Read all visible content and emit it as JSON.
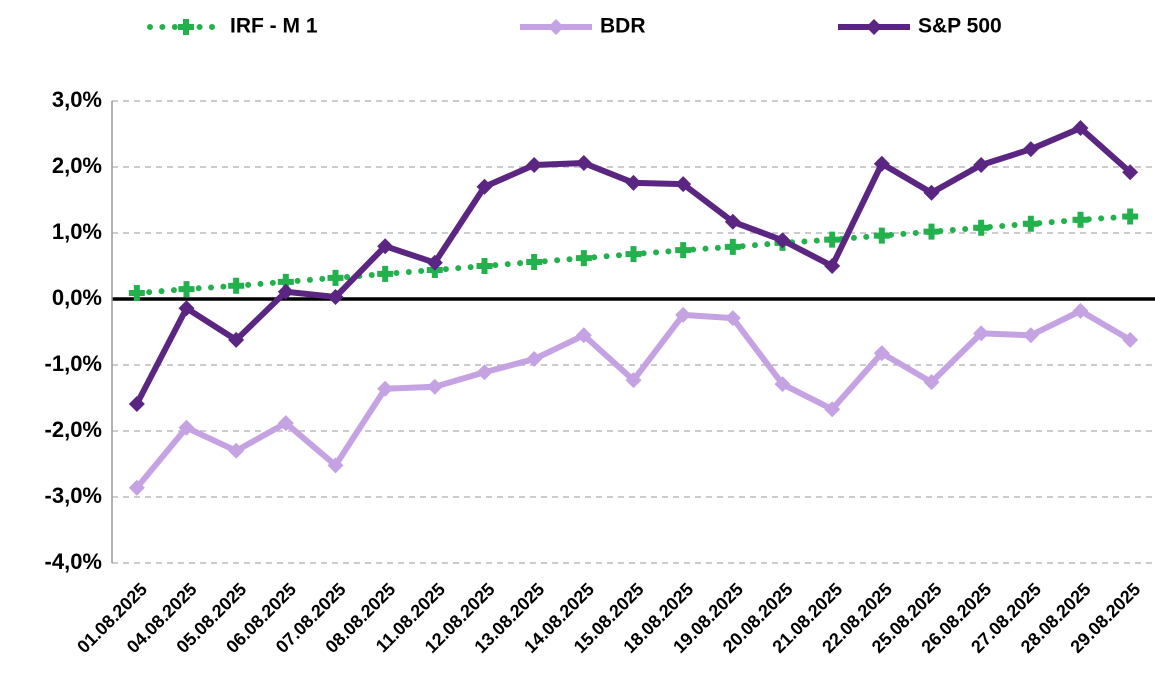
{
  "chart_data": {
    "type": "line",
    "categories": [
      "01.08.2025",
      "04.08.2025",
      "05.08.2025",
      "06.08.2025",
      "07.08.2025",
      "08.08.2025",
      "11.08.2025",
      "12.08.2025",
      "13.08.2025",
      "14.08.2025",
      "15.08.2025",
      "18.08.2025",
      "19.08.2025",
      "20.08.2025",
      "21.08.2025",
      "22.08.2025",
      "25.08.2025",
      "26.08.2025",
      "27.08.2025",
      "28.08.2025",
      "29.08.2025"
    ],
    "series": [
      {
        "name": "IRF - M 1",
        "color": "#22b14c",
        "style": "dotted",
        "values": [
          0.09,
          0.15,
          0.2,
          0.26,
          0.32,
          0.38,
          0.44,
          0.5,
          0.56,
          0.62,
          0.68,
          0.74,
          0.79,
          0.85,
          0.9,
          0.96,
          1.02,
          1.08,
          1.14,
          1.2,
          1.25
        ]
      },
      {
        "name": "BDR",
        "color": "#c5a3e3",
        "style": "solid",
        "values": [
          -2.86,
          -1.95,
          -2.3,
          -1.88,
          -2.52,
          -1.36,
          -1.33,
          -1.11,
          -0.91,
          -0.55,
          -1.23,
          -0.24,
          -0.29,
          -1.29,
          -1.67,
          -0.82,
          -1.26,
          -0.52,
          -0.55,
          -0.18,
          -0.62
        ]
      },
      {
        "name": "S&P 500",
        "color": "#5b2582",
        "style": "solid",
        "values": [
          -1.59,
          -0.14,
          -0.62,
          0.11,
          0.03,
          0.8,
          0.55,
          1.7,
          2.03,
          2.06,
          1.76,
          1.74,
          1.17,
          0.89,
          0.5,
          2.05,
          1.61,
          2.03,
          2.27,
          2.59,
          1.92
        ]
      }
    ],
    "ylim": [
      -4,
      3
    ],
    "yticks": [
      {
        "value": -4,
        "label": "-4,0%"
      },
      {
        "value": -3,
        "label": "-3,0%"
      },
      {
        "value": -2,
        "label": "-2,0%"
      },
      {
        "value": -1,
        "label": "-1,0%"
      },
      {
        "value": 0,
        "label": "0,0%"
      },
      {
        "value": 1,
        "label": "1,0%"
      },
      {
        "value": 2,
        "label": "2,0%"
      },
      {
        "value": 3,
        "label": "3,0%"
      }
    ],
    "grid": true,
    "legend": "top"
  }
}
